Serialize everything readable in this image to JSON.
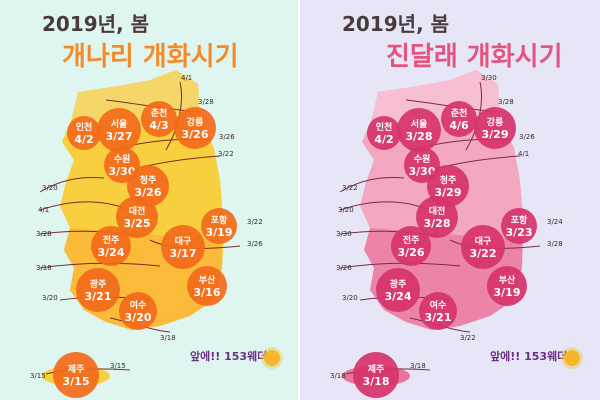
{
  "colors": {
    "forsythia_bg": "#dff6f0",
    "azalea_bg": "#e6e6f7",
    "forsythia_title": "#f58a2a",
    "azalea_title": "#e3557f",
    "forsythia_bubble": "#f26a1b",
    "azalea_bubble": "#d6336c"
  },
  "left": {
    "year": "2019년, 봄",
    "title": "개나리 개화시기",
    "cities": [
      {
        "name": "인천",
        "date": "4/2"
      },
      {
        "name": "서울",
        "date": "3/27"
      },
      {
        "name": "춘천",
        "date": "4/3"
      },
      {
        "name": "강릉",
        "date": "3/26"
      },
      {
        "name": "수원",
        "date": "3/30"
      },
      {
        "name": "청주",
        "date": "3/26"
      },
      {
        "name": "대전",
        "date": "3/25"
      },
      {
        "name": "포항",
        "date": "3/19"
      },
      {
        "name": "전주",
        "date": "3/24"
      },
      {
        "name": "대구",
        "date": "3/17"
      },
      {
        "name": "광주",
        "date": "3/21"
      },
      {
        "name": "부산",
        "date": "3/16"
      },
      {
        "name": "여수",
        "date": "3/20"
      },
      {
        "name": "제주",
        "date": "3/15"
      }
    ],
    "isolines": [
      "4/1",
      "3/28",
      "3/26",
      "3/22",
      "3/20",
      "4/1",
      "3/28",
      "3/26",
      "3/18",
      "3/22",
      "3/20",
      "3/18",
      "3/15",
      "3/15"
    ],
    "brand": "앞에!! 153웨더"
  },
  "right": {
    "year": "2019년, 봄",
    "title": "진달래 개화시기",
    "cities": [
      {
        "name": "인천",
        "date": "4/2"
      },
      {
        "name": "서울",
        "date": "3/28"
      },
      {
        "name": "춘천",
        "date": "4/6"
      },
      {
        "name": "강릉",
        "date": "3/29"
      },
      {
        "name": "수원",
        "date": "3/30"
      },
      {
        "name": "청주",
        "date": "3/29"
      },
      {
        "name": "대전",
        "date": "3/28"
      },
      {
        "name": "포항",
        "date": "3/23"
      },
      {
        "name": "전주",
        "date": "3/26"
      },
      {
        "name": "대구",
        "date": "3/22"
      },
      {
        "name": "광주",
        "date": "3/24"
      },
      {
        "name": "부산",
        "date": "3/19"
      },
      {
        "name": "여수",
        "date": "3/21"
      },
      {
        "name": "제주",
        "date": "3/18"
      }
    ],
    "isolines": [
      "3/30",
      "3/28",
      "3/26",
      "4/1",
      "3/22",
      "3/20",
      "3/30",
      "3/28",
      "3/26",
      "3/24",
      "3/20",
      "3/22",
      "3/18",
      "3/18"
    ],
    "brand": "앞에!! 153웨더"
  }
}
